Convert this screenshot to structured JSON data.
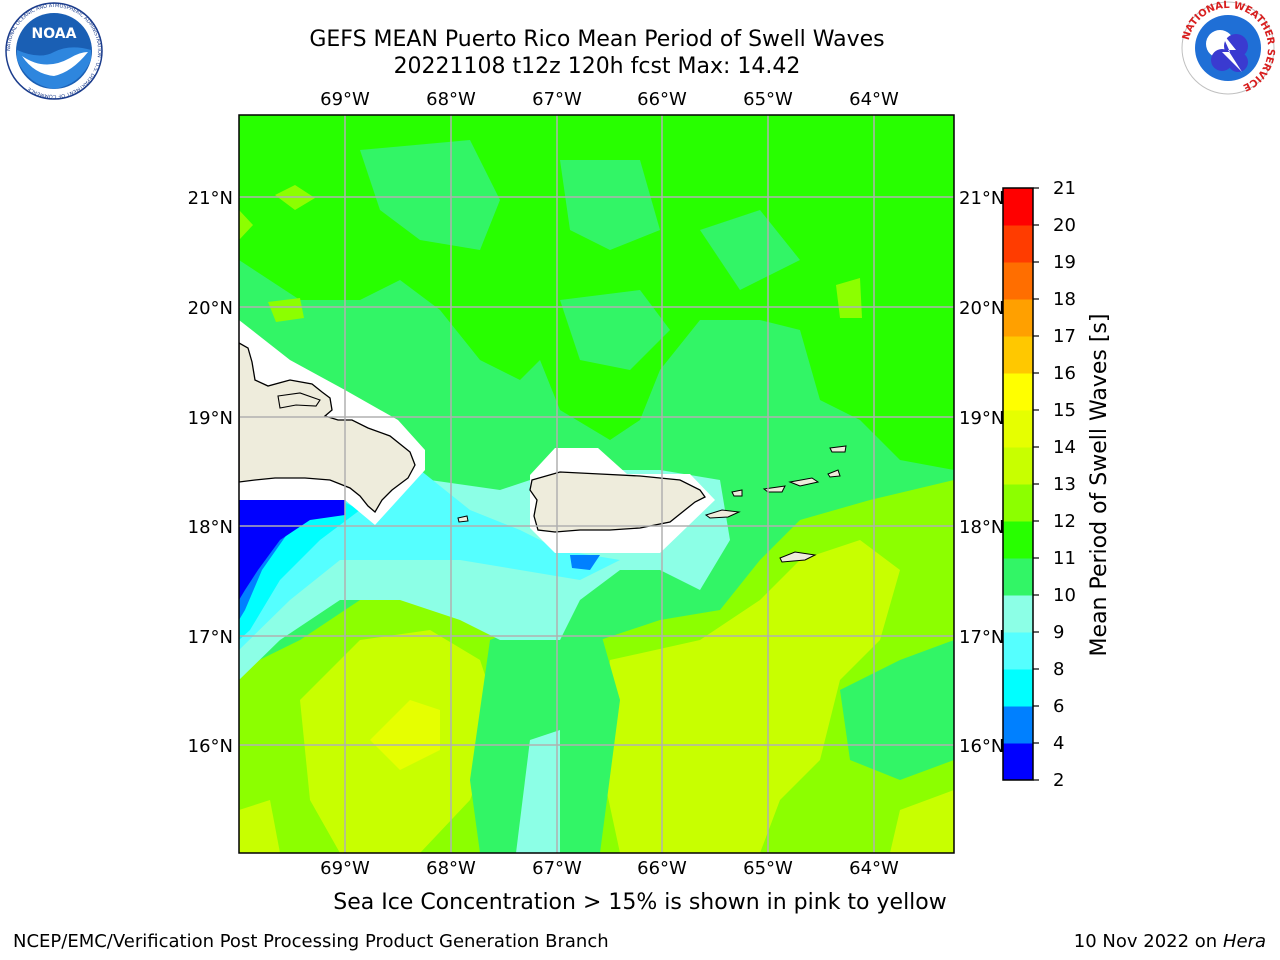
{
  "title_line1": "GEFS MEAN Puerto Rico Mean Period of Swell Waves",
  "title_line2": "20221108 t12z 120h fcst   Max: 14.42",
  "caption": "Sea Ice Concentration > 15% is shown in pink to yellow",
  "footer_left": "NCEP/EMC/Verification Post Processing Product Generation Branch",
  "footer_right_date": "10 Nov 2022 on",
  "footer_right_machine": "Hera",
  "logos": {
    "noaa_text": "NOAA",
    "noaa_ring": "NATIONAL OCEANIC AND ATMOSPHERIC ADMINISTRATION · U.S. DEPARTMENT OF COMMERCE",
    "nws_ring": "NATIONAL WEATHER SERVICE"
  },
  "map": {
    "lon_labels": [
      "69°W",
      "68°W",
      "67°W",
      "66°W",
      "65°W",
      "64°W"
    ],
    "lat_labels": [
      "21°N",
      "20°N",
      "19°N",
      "18°N",
      "17°N",
      "16°N"
    ],
    "colors": {
      "land": "#eeecdc",
      "grid": "#b0b0b0",
      "coast": "#000000"
    }
  },
  "colorbar": {
    "label": "Mean Period of Swell Waves [s]",
    "ticks": [
      "2",
      "4",
      "6",
      "8",
      "9",
      "10",
      "11",
      "12",
      "13",
      "14",
      "15",
      "16",
      "17",
      "18",
      "19",
      "20",
      "21"
    ],
    "colors": [
      "#0000ff",
      "#0080ff",
      "#00ffff",
      "#55ffff",
      "#8cffe6",
      "#32f566",
      "#28ff00",
      "#8cff00",
      "#c8ff00",
      "#e6ff00",
      "#ffff00",
      "#ffc800",
      "#ffa000",
      "#ff6e00",
      "#ff3c00",
      "#ff0000"
    ]
  }
}
